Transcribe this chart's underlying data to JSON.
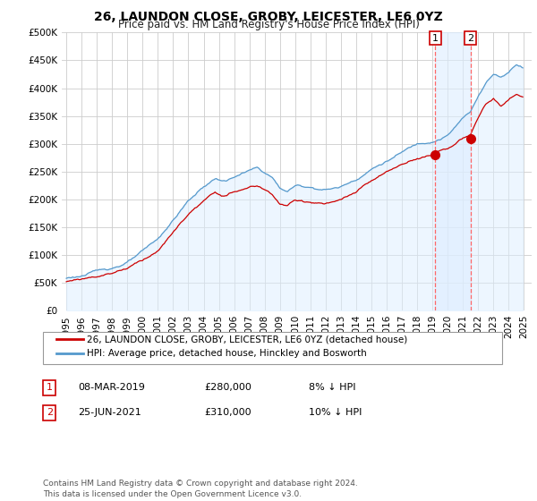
{
  "title": "26, LAUNDON CLOSE, GROBY, LEICESTER, LE6 0YZ",
  "subtitle": "Price paid vs. HM Land Registry's House Price Index (HPI)",
  "ylim": [
    0,
    500000
  ],
  "yticks": [
    0,
    50000,
    100000,
    150000,
    200000,
    250000,
    300000,
    350000,
    400000,
    450000,
    500000
  ],
  "ytick_labels": [
    "£0",
    "£50K",
    "£100K",
    "£150K",
    "£200K",
    "£250K",
    "£300K",
    "£350K",
    "£400K",
    "£450K",
    "£500K"
  ],
  "background_color": "#ffffff",
  "plot_bg_color": "#ffffff",
  "grid_color": "#cccccc",
  "red_line_color": "#cc0000",
  "blue_line_color": "#5599cc",
  "blue_fill_color": "#ddeeff",
  "shade_between_color": "#ddeeff",
  "vline_color": "#ff6666",
  "sale1_date": 2019.18,
  "sale1_price": 280000,
  "sale2_date": 2021.49,
  "sale2_price": 310000,
  "legend_label_red": "26, LAUNDON CLOSE, GROBY, LEICESTER, LE6 0YZ (detached house)",
  "legend_label_blue": "HPI: Average price, detached house, Hinckley and Bosworth",
  "table_row1": [
    "1",
    "08-MAR-2019",
    "£280,000",
    "8% ↓ HPI"
  ],
  "table_row2": [
    "2",
    "25-JUN-2021",
    "£310,000",
    "10% ↓ HPI"
  ],
  "footer": "Contains HM Land Registry data © Crown copyright and database right 2024.\nThis data is licensed under the Open Government Licence v3.0.",
  "title_fontsize": 10,
  "subtitle_fontsize": 8.5,
  "tick_fontsize": 7.5,
  "legend_fontsize": 7.5
}
